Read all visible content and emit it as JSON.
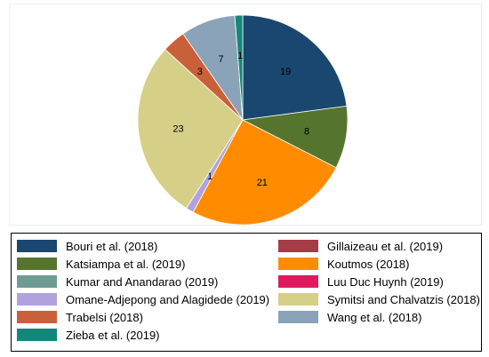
{
  "chart_data": {
    "type": "pie",
    "title": "",
    "start": "12 o'clock, clockwise",
    "legend_placement": "bottom",
    "slices": [
      {
        "name": "Bouri et al. (2018)",
        "value": 19,
        "color": "#1a476f"
      },
      {
        "name": "Katsiampa et al. (2019)",
        "value": 8,
        "color": "#55752f"
      },
      {
        "name": "Koutmos (2018)",
        "value": 21,
        "color": "#ff8c00"
      },
      {
        "name": "Omane-Adjepong and Alagidede (2019)",
        "value": 1,
        "color": "#b2a2dc"
      },
      {
        "name": "Symitsi and Chalvatzis (2018)",
        "value": 23,
        "color": "#d6cf87"
      },
      {
        "name": "Trabelsi (2018)",
        "value": 3,
        "color": "#c9603a"
      },
      {
        "name": "Wang et al. (2018)",
        "value": 7,
        "color": "#8aa3b8"
      },
      {
        "name": "Zieba et al. (2019)",
        "value": 1,
        "color": "#15877a"
      }
    ],
    "legend": [
      {
        "name": "Bouri et al. (2018)",
        "color": "#1a476f"
      },
      {
        "name": "Gillaizeau et al. (2019)",
        "color": "#a63c45"
      },
      {
        "name": "Katsiampa et al. (2019)",
        "color": "#55752f"
      },
      {
        "name": "Koutmos (2018)",
        "color": "#ff8c00"
      },
      {
        "name": "Kumar and Anandarao (2019)",
        "color": "#6e9c94"
      },
      {
        "name": "Luu Duc Huynh (2019)",
        "color": "#e0195f"
      },
      {
        "name": "Omane-Adjepong and Alagidede (2019)",
        "color": "#b2a2dc"
      },
      {
        "name": "Symitsi and Chalvatzis (2018)",
        "color": "#d6cf87"
      },
      {
        "name": "Trabelsi (2018)",
        "color": "#c9603a"
      },
      {
        "name": "Wang et al. (2018)",
        "color": "#8aa3b8"
      },
      {
        "name": "Zieba et al. (2019)",
        "color": "#15877a"
      }
    ]
  }
}
